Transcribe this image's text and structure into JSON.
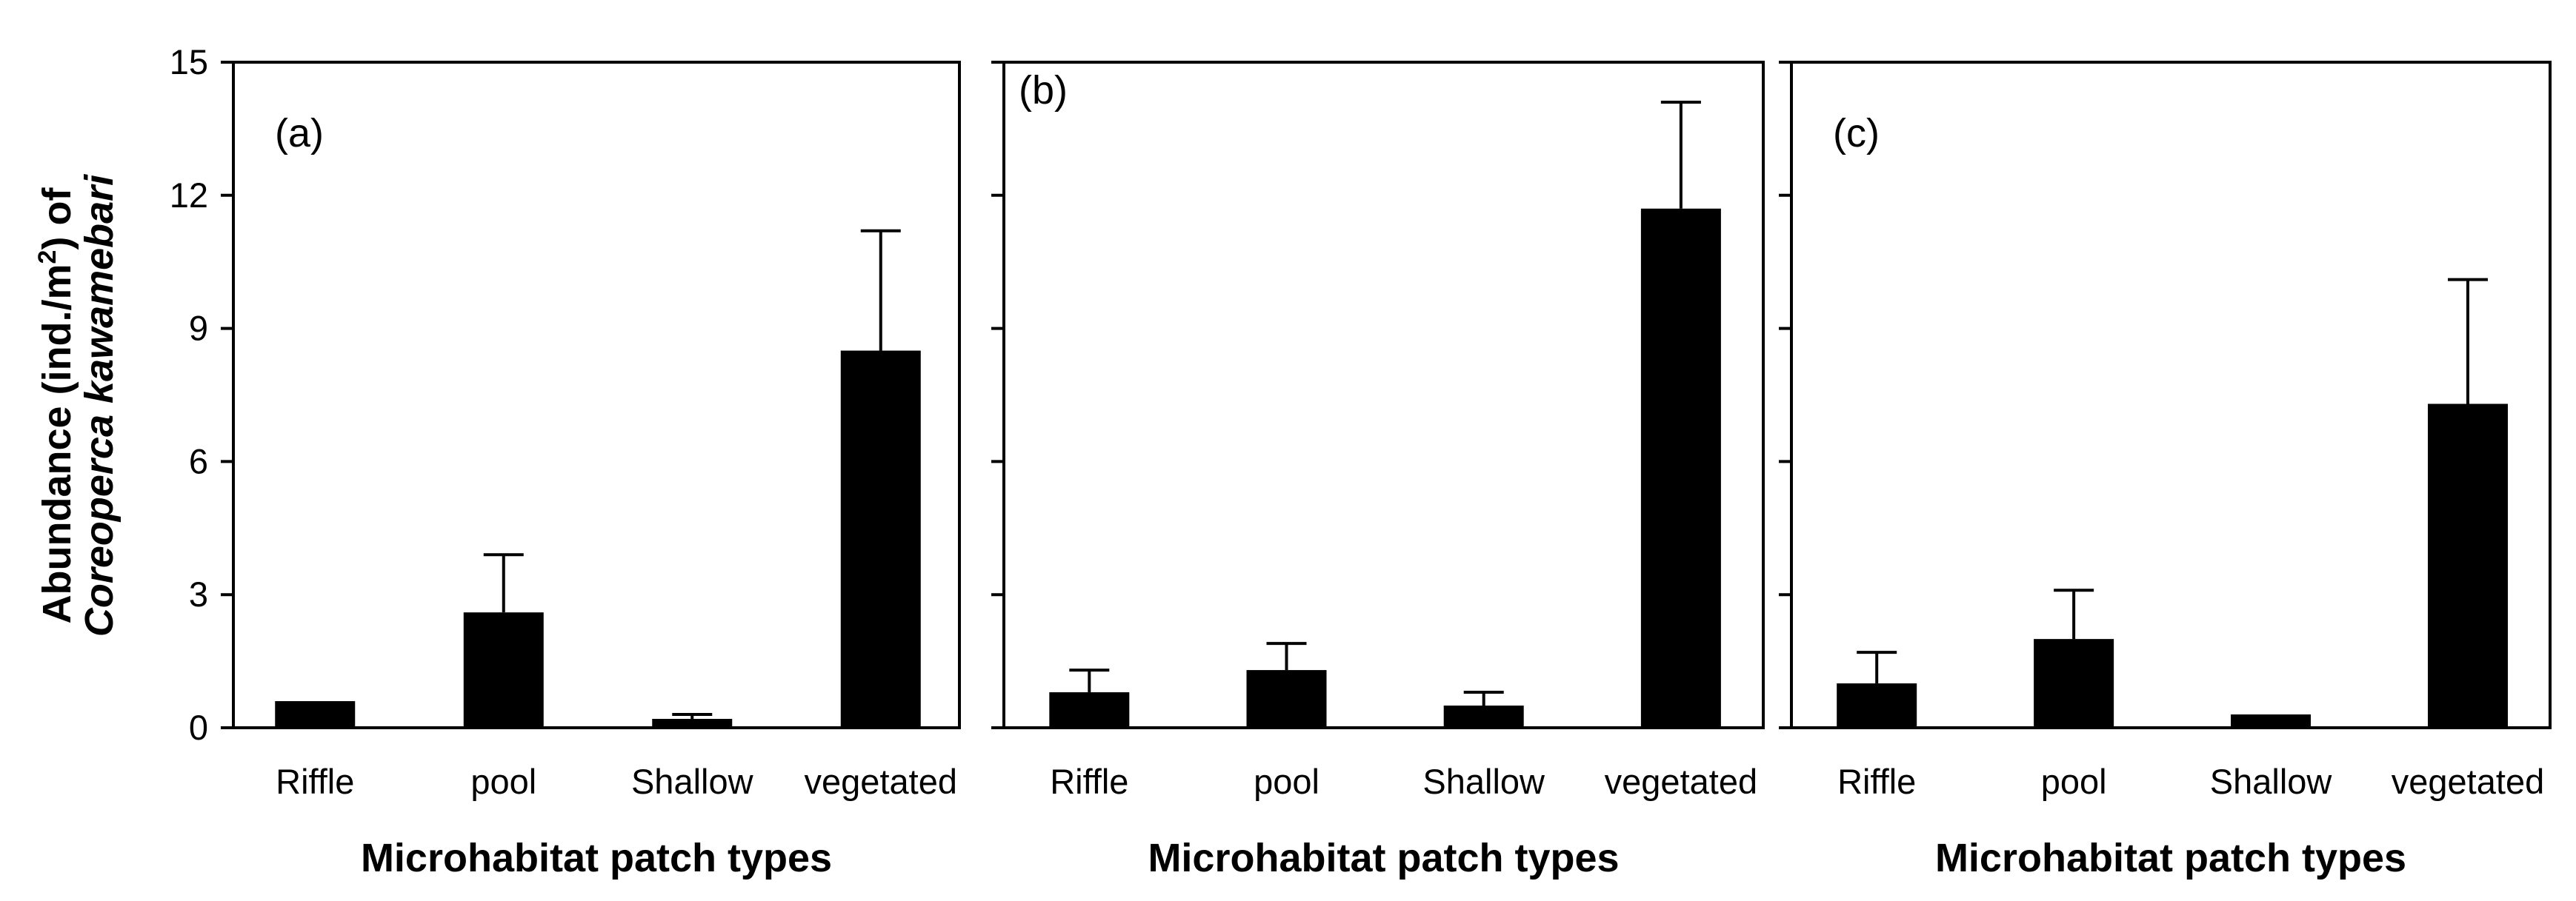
{
  "chart_data": {
    "type": "bar",
    "ylabel_line1": "Abundance (ind./m",
    "ylabel_sup": "2",
    "ylabel_line1_end": ") of",
    "ylabel_line2": "Coreoperca kawamebari",
    "ylim": [
      0,
      15
    ],
    "yticks": [
      "0",
      "3",
      "6",
      "9",
      "12",
      "15"
    ],
    "ytick_values": [
      0,
      3,
      6,
      9,
      12,
      15
    ],
    "categories": [
      "Riffle",
      "pool",
      "Shallow",
      "vegetated"
    ],
    "panels": [
      {
        "tag": "(a)",
        "xlabel": "Microhabitat patch types",
        "values": [
          0.6,
          2.6,
          0.2,
          8.5
        ],
        "errors": [
          0,
          1.3,
          0.1,
          2.7
        ]
      },
      {
        "tag": "(b)",
        "xlabel": "Microhabitat patch types",
        "values": [
          0.8,
          1.3,
          0.5,
          11.7
        ],
        "errors": [
          0.5,
          0.6,
          0.3,
          2.4
        ]
      },
      {
        "tag": "(c)",
        "xlabel": "Microhabitat patch types",
        "values": [
          1.0,
          2.0,
          0.3,
          7.3
        ],
        "errors": [
          0.7,
          1.1,
          0,
          2.8
        ]
      }
    ]
  }
}
